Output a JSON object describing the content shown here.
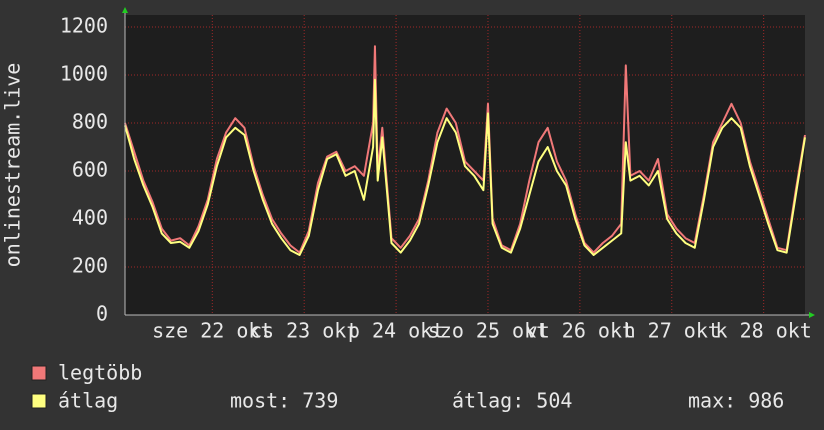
{
  "chart_data": {
    "type": "line",
    "y_label": "onlinestream.live",
    "x": [
      0.0,
      0.1,
      0.2,
      0.3,
      0.4,
      0.5,
      0.6,
      0.7,
      0.8,
      0.9,
      1.0,
      1.1,
      1.2,
      1.3,
      1.4,
      1.5,
      1.6,
      1.7,
      1.8,
      1.9,
      2.0,
      2.1,
      2.2,
      2.3,
      2.4,
      2.5,
      2.6,
      2.7,
      2.72,
      2.75,
      2.8,
      2.9,
      3.0,
      3.1,
      3.2,
      3.3,
      3.4,
      3.5,
      3.6,
      3.7,
      3.8,
      3.9,
      3.95,
      4.0,
      4.1,
      4.2,
      4.3,
      4.4,
      4.5,
      4.6,
      4.7,
      4.8,
      4.9,
      5.0,
      5.1,
      5.2,
      5.3,
      5.4,
      5.45,
      5.5,
      5.6,
      5.7,
      5.8,
      5.9,
      6.0,
      6.1,
      6.2,
      6.3,
      6.4,
      6.5,
      6.6,
      6.7,
      6.8,
      6.9,
      7.0,
      7.1,
      7.2,
      7.3,
      7.4
    ],
    "series": [
      {
        "name": "legtöbb",
        "color": "#f07878",
        "values": [
          800,
          680,
          560,
          470,
          360,
          310,
          320,
          290,
          370,
          480,
          650,
          760,
          820,
          780,
          620,
          500,
          400,
          340,
          290,
          260,
          350,
          550,
          660,
          680,
          600,
          620,
          580,
          800,
          1120,
          600,
          780,
          320,
          280,
          330,
          400,
          560,
          760,
          860,
          800,
          640,
          600,
          560,
          880,
          400,
          290,
          270,
          380,
          560,
          720,
          780,
          640,
          560,
          420,
          300,
          260,
          300,
          330,
          380,
          1040,
          580,
          600,
          560,
          650,
          420,
          360,
          320,
          300,
          500,
          720,
          800,
          880,
          800,
          640,
          520,
          400,
          280,
          270,
          520,
          750
        ]
      },
      {
        "name": "átlag",
        "color": "#ffff80",
        "values": [
          790,
          650,
          540,
          450,
          340,
          300,
          305,
          280,
          350,
          460,
          620,
          740,
          780,
          750,
          600,
          480,
          380,
          320,
          270,
          250,
          330,
          520,
          650,
          670,
          580,
          600,
          480,
          700,
          980,
          560,
          740,
          300,
          260,
          310,
          380,
          540,
          720,
          820,
          760,
          620,
          580,
          520,
          840,
          380,
          280,
          260,
          360,
          500,
          640,
          700,
          600,
          540,
          400,
          290,
          250,
          280,
          310,
          340,
          720,
          560,
          580,
          540,
          600,
          400,
          340,
          300,
          280,
          480,
          700,
          780,
          820,
          780,
          620,
          500,
          380,
          270,
          260,
          500,
          740
        ]
      }
    ],
    "xlim": [
      0,
      7.4
    ],
    "xticks": [
      {
        "value": 0.95,
        "label": "sze 22 okt"
      },
      {
        "value": 1.95,
        "label": "cs 23 okt"
      },
      {
        "value": 2.95,
        "label": "p 24 okt"
      },
      {
        "value": 3.95,
        "label": "szo 25 okt"
      },
      {
        "value": 4.95,
        "label": "vt 26 okt"
      },
      {
        "value": 5.95,
        "label": "h 27 okt"
      },
      {
        "value": 6.95,
        "label": "k 28 okt"
      }
    ],
    "ylim": [
      0,
      1200
    ],
    "yticks": [
      0,
      200,
      400,
      600,
      800,
      1000,
      1200
    ],
    "grid": true,
    "stats": [
      "most: 739",
      "átlag: 504",
      "max: 986"
    ]
  }
}
